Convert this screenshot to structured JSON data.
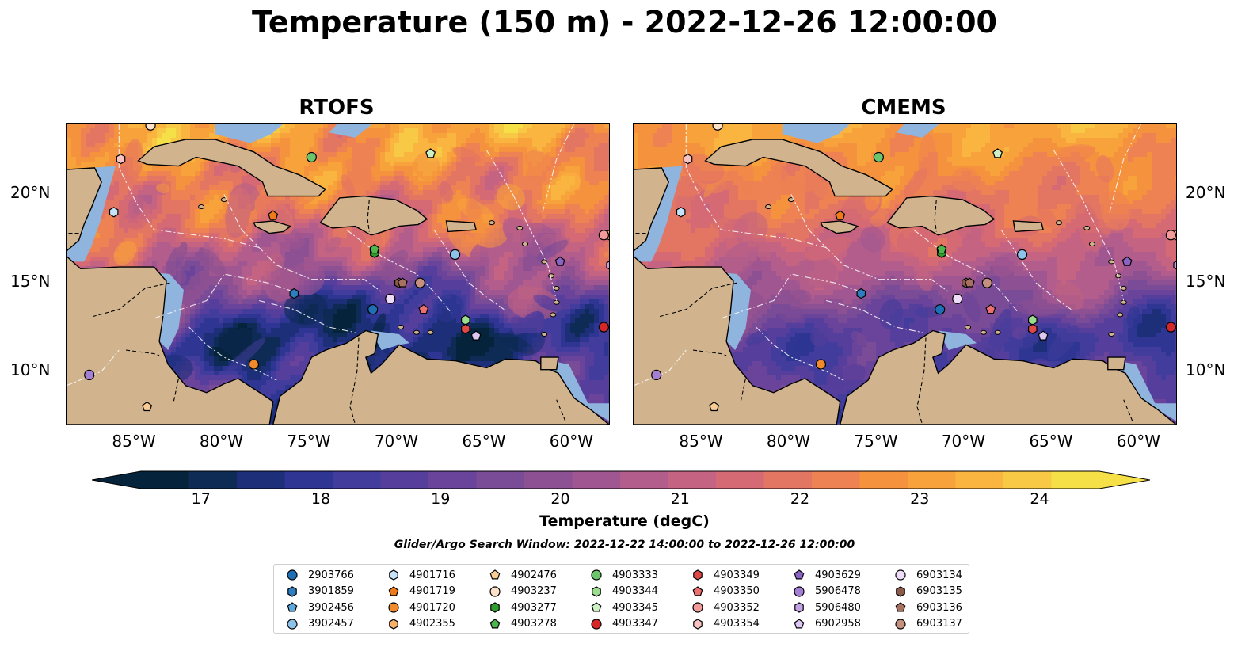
{
  "title": "Temperature (150 m) - 2022-12-26 12:00:00",
  "panels": [
    {
      "title": "RTOFS",
      "variant": "rtofs"
    },
    {
      "title": "CMEMS",
      "variant": "cmems"
    }
  ],
  "colors": {
    "land": "#d1b48e",
    "shelf": "#8fb4de",
    "colormap": [
      "#05233a",
      "#0e2b55",
      "#1c2f78",
      "#2e3592",
      "#423c9c",
      "#563f9c",
      "#69449a",
      "#7a4b97",
      "#8d5193",
      "#a05690",
      "#b25d8b",
      "#c46382",
      "#d56a74",
      "#e37563",
      "#ee8252",
      "#f5923e",
      "#f8a23b",
      "#f9b540",
      "#f8c945",
      "#f5e048"
    ]
  },
  "chart_data": {
    "type": "heatmap",
    "map_extent": {
      "lon": [
        -89,
        -58
      ],
      "lat": [
        7,
        24
      ]
    },
    "x_ticks": [
      "85°W",
      "80°W",
      "75°W",
      "70°W",
      "65°W",
      "60°W"
    ],
    "y_ticks": [
      "20°N",
      "15°N",
      "10°N"
    ],
    "colorbar": {
      "label": "Temperature (degC)",
      "range": [
        16.5,
        24.5
      ],
      "step": 0.5,
      "extend": "both",
      "ticks": [
        "17",
        "18",
        "19",
        "20",
        "21",
        "22",
        "23",
        "24"
      ]
    },
    "search_window": "Glider/Argo Search Window: 2022-12-22 14:00:00 to 2022-12-26 12:00:00",
    "floats": [
      {
        "id": "2903766",
        "marker": "circle",
        "color": "#1f6fb4",
        "lon": -71.5,
        "lat": 13.5
      },
      {
        "id": "3901859",
        "marker": "hexagon",
        "color": "#2d7ec0",
        "lon": -76.0,
        "lat": 14.4
      },
      {
        "id": "3902456",
        "marker": "pentagon",
        "color": "#5aa8dc",
        "lon": -71.4,
        "lat": 16.8
      },
      {
        "id": "3902457",
        "marker": "circle",
        "color": "#8dc3ea",
        "lon": -66.8,
        "lat": 16.6
      },
      {
        "id": "4901716",
        "marker": "hexagon",
        "color": "#c7e3f7",
        "lon": -86.3,
        "lat": 19.0
      },
      {
        "id": "4901719",
        "marker": "pentagon",
        "color": "#f07a18",
        "lon": -77.2,
        "lat": 18.8
      },
      {
        "id": "4901720",
        "marker": "circle",
        "color": "#f08a2a",
        "lon": -78.3,
        "lat": 10.4
      },
      {
        "id": "4902355",
        "marker": "hexagon",
        "color": "#f8b06a",
        "lon": -58.0,
        "lat": 17.7
      },
      {
        "id": "4902476",
        "marker": "pentagon",
        "color": "#f9cc94",
        "lon": -84.4,
        "lat": 8.0
      },
      {
        "id": "4903237",
        "marker": "circle",
        "color": "#fce2c8",
        "lon": -84.2,
        "lat": 23.9
      },
      {
        "id": "4903277",
        "marker": "hexagon",
        "color": "#2f9e2f",
        "lon": -71.4,
        "lat": 16.7
      },
      {
        "id": "4903278",
        "marker": "pentagon",
        "color": "#4cb84c",
        "lon": -71.4,
        "lat": 16.9
      },
      {
        "id": "4903333",
        "marker": "circle",
        "color": "#6cc46c",
        "lon": -75.0,
        "lat": 22.1
      },
      {
        "id": "4903344",
        "marker": "hexagon",
        "color": "#9bdc90",
        "lon": -66.2,
        "lat": 12.9
      },
      {
        "id": "4903345",
        "marker": "pentagon",
        "color": "#cdf0c4",
        "lon": -68.2,
        "lat": 22.3
      },
      {
        "id": "4903347",
        "marker": "circle",
        "color": "#d62728",
        "lon": -58.3,
        "lat": 12.5
      },
      {
        "id": "4903349",
        "marker": "hexagon",
        "color": "#e04848",
        "lon": -66.2,
        "lat": 12.4
      },
      {
        "id": "4903350",
        "marker": "pentagon",
        "color": "#ec7070",
        "lon": -68.6,
        "lat": 13.5
      },
      {
        "id": "4903352",
        "marker": "circle",
        "color": "#f39a9a",
        "lon": -58.3,
        "lat": 17.7
      },
      {
        "id": "4903354",
        "marker": "hexagon",
        "color": "#f9c3c3",
        "lon": -85.9,
        "lat": 22.0
      },
      {
        "id": "4903629",
        "marker": "pentagon",
        "color": "#8a63c4",
        "lon": -60.8,
        "lat": 16.2
      },
      {
        "id": "5906478",
        "marker": "circle",
        "color": "#a47fd4",
        "lon": -87.7,
        "lat": 9.8
      },
      {
        "id": "5906480",
        "marker": "hexagon",
        "color": "#c2a3e6",
        "lon": -57.9,
        "lat": 16.0
      },
      {
        "id": "6902958",
        "marker": "pentagon",
        "color": "#ddc8f4",
        "lon": -65.6,
        "lat": 12.0
      },
      {
        "id": "6903134",
        "marker": "circle",
        "color": "#efdcf8",
        "lon": -70.5,
        "lat": 14.1
      },
      {
        "id": "6903135",
        "marker": "hexagon",
        "color": "#8c5a4a",
        "lon": -70.0,
        "lat": 15.0
      },
      {
        "id": "6903136",
        "marker": "pentagon",
        "color": "#a87060",
        "lon": -69.8,
        "lat": 15.0
      },
      {
        "id": "6903137",
        "marker": "circle",
        "color": "#c49080",
        "lon": -68.8,
        "lat": 15.0
      }
    ]
  }
}
